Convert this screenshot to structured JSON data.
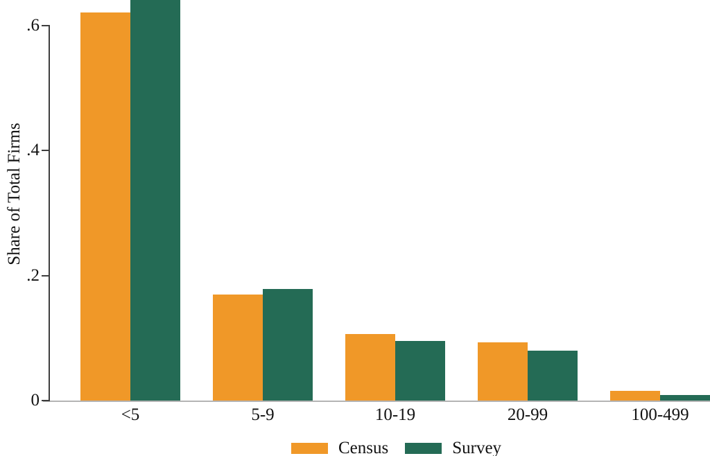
{
  "chart_data": {
    "type": "bar",
    "title": "",
    "xlabel": "",
    "ylabel": "Share of Total Firms",
    "categories": [
      "<5",
      "5-9",
      "10-19",
      "20-99",
      "100-499"
    ],
    "series": [
      {
        "name": "Census",
        "color": "#F09828",
        "values": [
          0.62,
          0.17,
          0.106,
          0.093,
          0.016
        ]
      },
      {
        "name": "Survey",
        "color": "#246B55",
        "values": [
          0.65,
          0.178,
          0.095,
          0.08,
          0.009
        ]
      }
    ],
    "yticks": [
      {
        "value": 0,
        "label": "0"
      },
      {
        "value": 0.2,
        "label": ".2"
      },
      {
        "value": 0.4,
        "label": ".4"
      },
      {
        "value": 0.6,
        "label": ".6"
      }
    ],
    "ylim": [
      0,
      0.64
    ],
    "grid": false,
    "legend_position": "bottom",
    "legend": [
      "Census",
      "Survey"
    ]
  }
}
